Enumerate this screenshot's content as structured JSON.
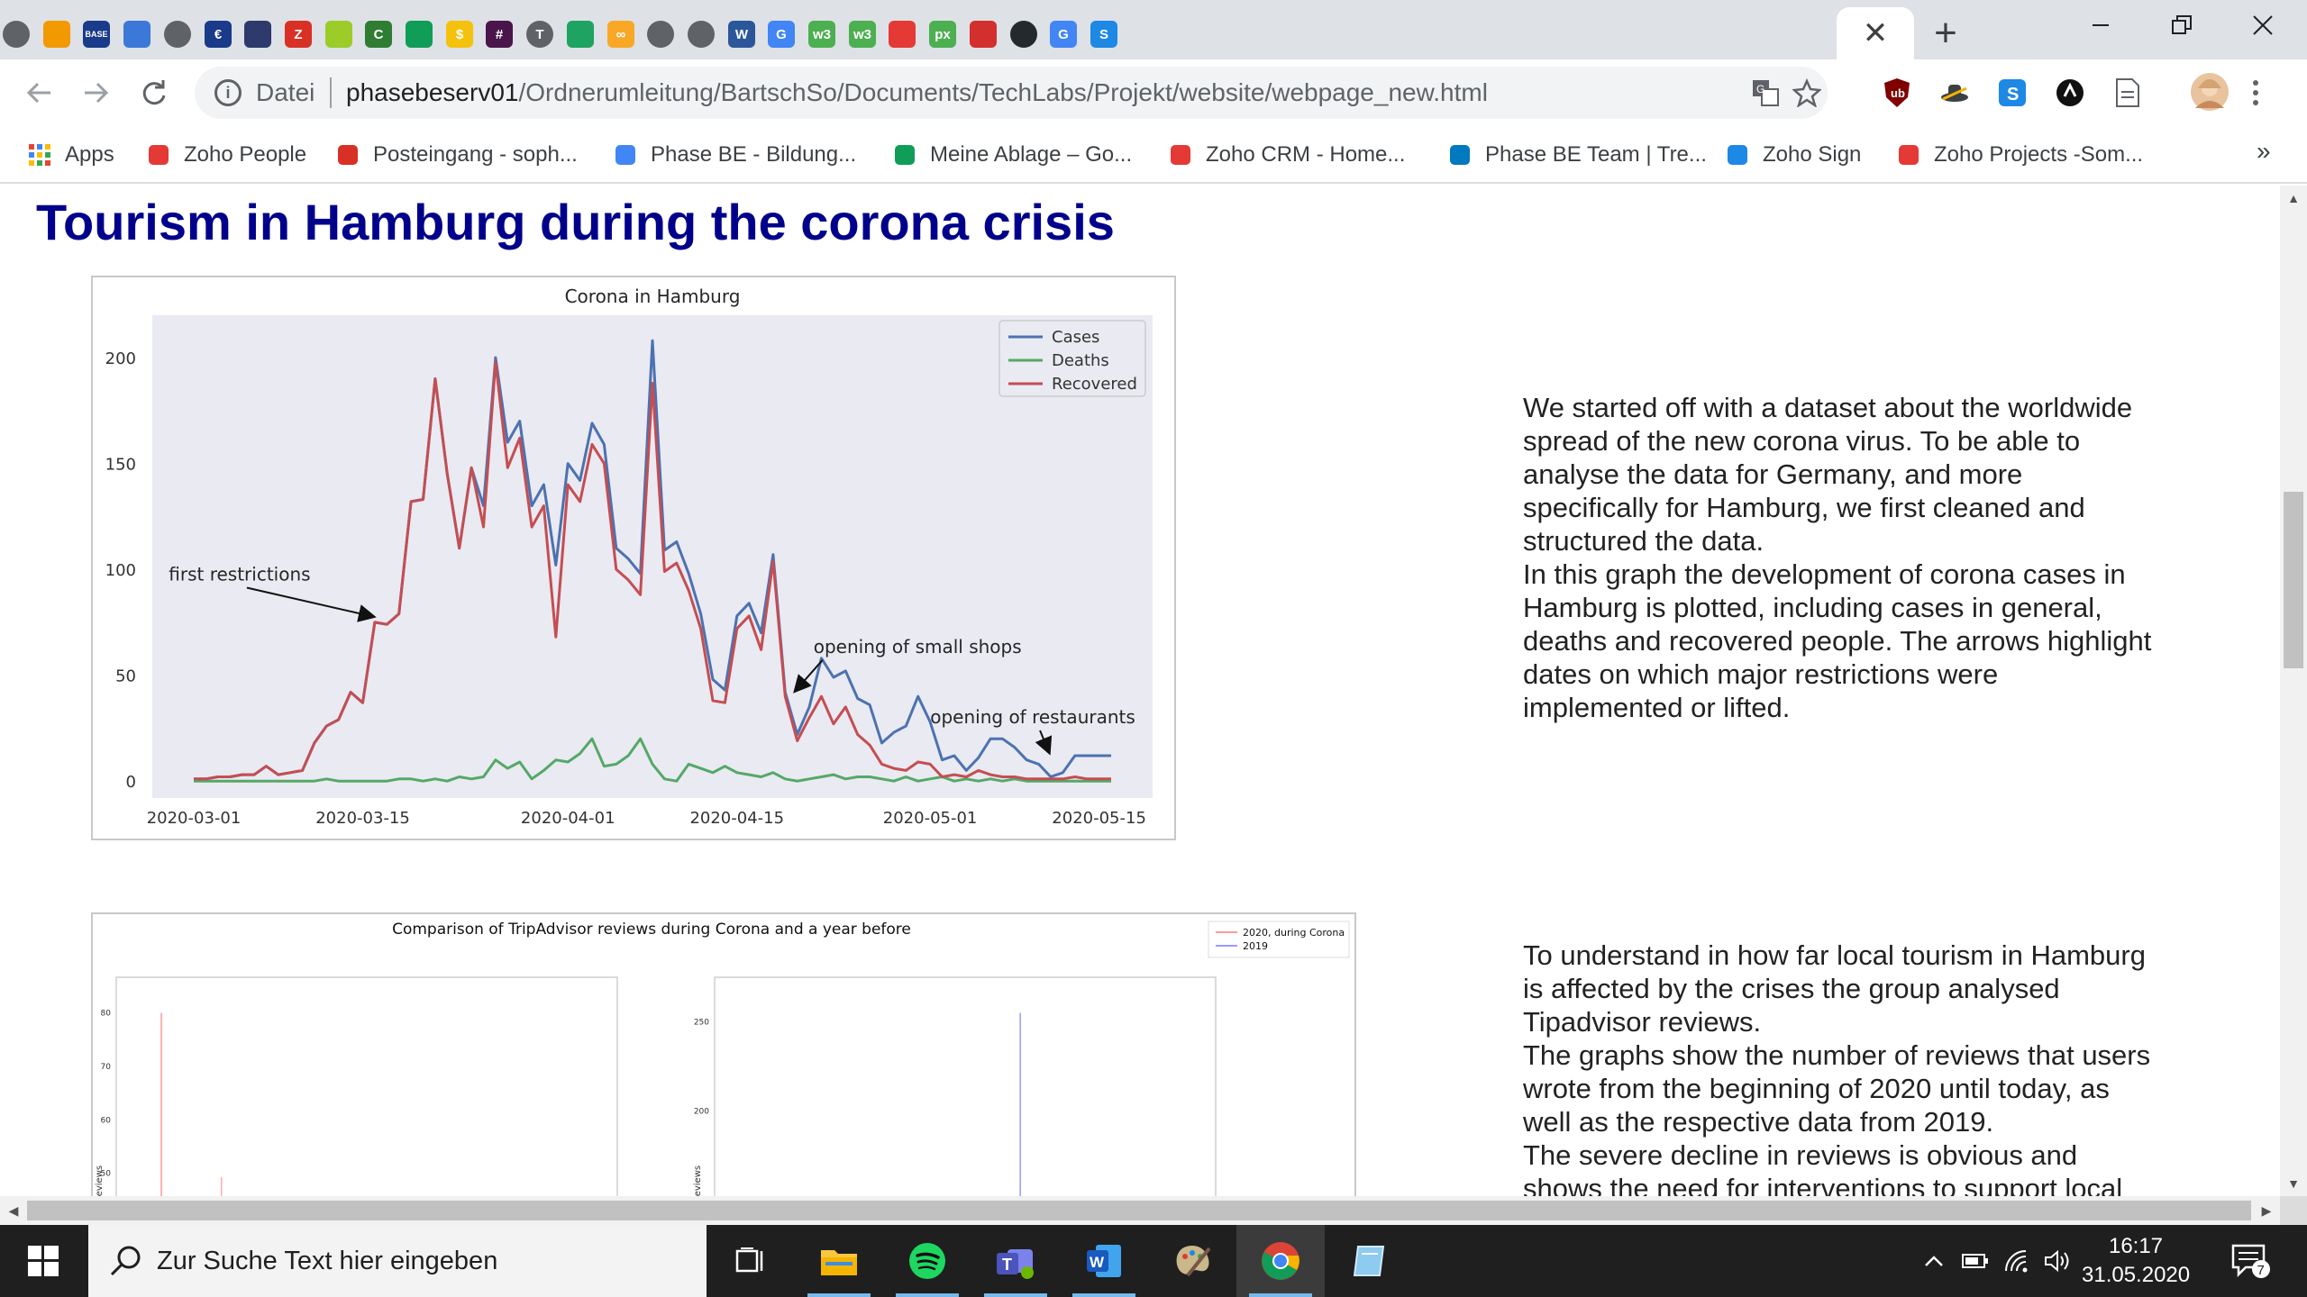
{
  "browser": {
    "close_tab_glyph": "✕",
    "new_tab_glyph": "+",
    "address_bar": {
      "security_label": "Datei",
      "host": "phasebeserv01",
      "path": "/Ordnerumleitung/BartschSo/Documents/TechLabs/Projekt/website/webpage_new.html"
    },
    "tab_favicons": [
      {
        "icon": "globe-icon",
        "label": "",
        "color": "#5f6368"
      },
      {
        "icon": "handshake-icon",
        "label": "",
        "color": "#f29900"
      },
      {
        "icon": "base-icon",
        "label": "BASE",
        "color": "#1a3a8a"
      },
      {
        "icon": "ship-icon",
        "label": "",
        "color": "#3c78d8"
      },
      {
        "icon": "globe-icon",
        "label": "",
        "color": "#5f6368"
      },
      {
        "icon": "euro-icon",
        "label": "€",
        "color": "#1a3a8a"
      },
      {
        "icon": "chart-icon",
        "label": "",
        "color": "#2d3a6b"
      },
      {
        "icon": "zotero-icon",
        "label": "Z",
        "color": "#d93025"
      },
      {
        "icon": "box-icon",
        "label": "",
        "color": "#9ccc28"
      },
      {
        "icon": "copilot-icon",
        "label": "C",
        "color": "#2e7d32"
      },
      {
        "icon": "egov-icon",
        "label": "",
        "color": "#0f9d58"
      },
      {
        "icon": "dollar-icon",
        "label": "$",
        "color": "#f4c20d"
      },
      {
        "icon": "slack-icon",
        "label": "#",
        "color": "#4a154b"
      },
      {
        "icon": "typo-icon",
        "label": "T",
        "color": "#5f6368"
      },
      {
        "icon": "drive-icon",
        "label": "",
        "color": "#1ea362"
      },
      {
        "icon": "infinity-icon",
        "label": "∞",
        "color": "#f9a825"
      },
      {
        "icon": "globe-icon",
        "label": "",
        "color": "#5f6368"
      },
      {
        "icon": "globe-icon",
        "label": "",
        "color": "#5f6368"
      },
      {
        "icon": "word-icon",
        "label": "W",
        "color": "#2b579a"
      },
      {
        "icon": "google-icon",
        "label": "G",
        "color": "#4285f4"
      },
      {
        "icon": "w3-icon",
        "label": "w3",
        "color": "#4caf50"
      },
      {
        "icon": "w3-icon",
        "label": "w3",
        "color": "#4caf50"
      },
      {
        "icon": "palette-icon",
        "label": "",
        "color": "#e53935"
      },
      {
        "icon": "pixlr-icon",
        "label": "px",
        "color": "#4caf50"
      },
      {
        "icon": "bullet-icon",
        "label": "",
        "color": "#d32f2f"
      },
      {
        "icon": "github-icon",
        "label": "",
        "color": "#24292e"
      },
      {
        "icon": "google-icon",
        "label": "G",
        "color": "#4285f4"
      },
      {
        "icon": "s-logo-icon",
        "label": "S",
        "color": "#1e88e5"
      }
    ],
    "bookmarks": [
      {
        "icon": "apps-grid-icon",
        "label": "Apps",
        "color": "#4285f4"
      },
      {
        "icon": "zoho-people-icon",
        "label": "Zoho People",
        "color": "#e53935"
      },
      {
        "icon": "gmail-icon",
        "label": "Posteingang - soph...",
        "color": "#d93025"
      },
      {
        "icon": "calendar-icon",
        "label": "Phase BE - Bildung...",
        "color": "#4285f4"
      },
      {
        "icon": "drive-icon",
        "label": "Meine Ablage – Go...",
        "color": "#0f9d58"
      },
      {
        "icon": "zoho-crm-icon",
        "label": "Zoho CRM - Home...",
        "color": "#e53935"
      },
      {
        "icon": "trello-icon",
        "label": "Phase BE Team | Tre...",
        "color": "#0079bf"
      },
      {
        "icon": "zoho-sign-icon",
        "label": "Zoho Sign",
        "color": "#1e88e5"
      },
      {
        "icon": "zoho-projects-icon",
        "label": "Zoho Projects -Som...",
        "color": "#e53935"
      }
    ],
    "bookmarks_more": "»"
  },
  "page": {
    "title": "Tourism in Hamburg during the corona crisis",
    "paragraph1": [
      "We started off with a dataset about the worldwide",
      "spread of the new corona virus. To be able to",
      "analyse the data for Germany, and more",
      "specifically for Hamburg, we first cleaned and",
      "structured the data.",
      "In this graph the development of corona cases in",
      "Hamburg is plotted, including cases in general,",
      "deaths and recovered people. The arrows highlight",
      "dates on which major restrictions were",
      "implemented or lifted."
    ],
    "paragraph2": [
      "To understand in how far local tourism in Hamburg",
      "is affected by the crises the group analysed",
      "Tipadvisor reviews.",
      "The graphs show the number of reviews that users",
      "wrote from the beginning of 2020 until today, as",
      "well as the respective data from 2019.",
      "The severe decline in reviews is obvious and",
      "shows the need for interventions to support local"
    ]
  },
  "chart_data": [
    {
      "type": "line",
      "title": "Corona in Hamburg",
      "xlabel": "",
      "ylabel": "",
      "x_start": "2020-03-01",
      "x": [
        "2020-03-01",
        "2020-03-02",
        "2020-03-03",
        "2020-03-04",
        "2020-03-05",
        "2020-03-06",
        "2020-03-07",
        "2020-03-08",
        "2020-03-09",
        "2020-03-10",
        "2020-03-11",
        "2020-03-12",
        "2020-03-13",
        "2020-03-14",
        "2020-03-15",
        "2020-03-16",
        "2020-03-17",
        "2020-03-18",
        "2020-03-19",
        "2020-03-20",
        "2020-03-21",
        "2020-03-22",
        "2020-03-23",
        "2020-03-24",
        "2020-03-25",
        "2020-03-26",
        "2020-03-27",
        "2020-03-28",
        "2020-03-29",
        "2020-03-30",
        "2020-03-31",
        "2020-04-01",
        "2020-04-02",
        "2020-04-03",
        "2020-04-04",
        "2020-04-05",
        "2020-04-06",
        "2020-04-07",
        "2020-04-08",
        "2020-04-09",
        "2020-04-10",
        "2020-04-11",
        "2020-04-12",
        "2020-04-13",
        "2020-04-14",
        "2020-04-15",
        "2020-04-16",
        "2020-04-17",
        "2020-04-18",
        "2020-04-19",
        "2020-04-20",
        "2020-04-21",
        "2020-04-22",
        "2020-04-23",
        "2020-04-24",
        "2020-04-25",
        "2020-04-26",
        "2020-04-27",
        "2020-04-28",
        "2020-04-29",
        "2020-04-30",
        "2020-05-01",
        "2020-05-02",
        "2020-05-03",
        "2020-05-04",
        "2020-05-05",
        "2020-05-06",
        "2020-05-07",
        "2020-05-08",
        "2020-05-09",
        "2020-05-10",
        "2020-05-11",
        "2020-05-12",
        "2020-05-13",
        "2020-05-14",
        "2020-05-15",
        "2020-05-16"
      ],
      "series": [
        {
          "name": "Cases",
          "color": "#4c72b0",
          "values": [
            1,
            1,
            2,
            2,
            3,
            3,
            7,
            3,
            4,
            5,
            18,
            26,
            29,
            42,
            37,
            75,
            74,
            79,
            132,
            133,
            190,
            145,
            110,
            148,
            130,
            200,
            160,
            170,
            130,
            140,
            102,
            150,
            142,
            169,
            159,
            110,
            105,
            98,
            208,
            109,
            113,
            98,
            79,
            48,
            43,
            78,
            84,
            70,
            107,
            42,
            22,
            35,
            58,
            49,
            52,
            39,
            36,
            18,
            23,
            26,
            40,
            28,
            10,
            12,
            5,
            11,
            20,
            20,
            16,
            10,
            8,
            2,
            4,
            12,
            12,
            12,
            12
          ]
        },
        {
          "name": "Deaths",
          "color": "#55a868",
          "values": [
            0,
            0,
            0,
            0,
            0,
            0,
            0,
            0,
            0,
            0,
            0,
            1,
            0,
            0,
            0,
            0,
            0,
            1,
            1,
            0,
            1,
            0,
            2,
            1,
            2,
            10,
            6,
            9,
            1,
            5,
            10,
            9,
            13,
            20,
            7,
            8,
            12,
            20,
            8,
            1,
            0,
            8,
            6,
            4,
            7,
            4,
            3,
            2,
            4,
            1,
            0,
            1,
            2,
            3,
            1,
            2,
            2,
            1,
            0,
            2,
            0,
            1,
            2,
            0,
            1,
            0,
            1,
            0,
            1,
            0,
            0,
            0,
            0,
            0,
            0,
            0,
            0
          ]
        },
        {
          "name": "Recovered",
          "color": "#c44e52",
          "values": [
            1,
            1,
            2,
            2,
            3,
            3,
            7,
            3,
            4,
            5,
            18,
            26,
            29,
            42,
            37,
            75,
            74,
            79,
            132,
            133,
            190,
            145,
            110,
            148,
            120,
            198,
            148,
            162,
            120,
            130,
            68,
            140,
            132,
            159,
            150,
            100,
            95,
            88,
            188,
            99,
            103,
            90,
            72,
            38,
            37,
            72,
            78,
            62,
            104,
            40,
            19,
            30,
            40,
            27,
            35,
            22,
            17,
            8,
            6,
            5,
            9,
            8,
            2,
            3,
            2,
            5,
            3,
            2,
            2,
            1,
            1,
            1,
            1,
            2,
            1,
            1,
            1
          ]
        }
      ],
      "ylim": [
        -8,
        220
      ],
      "yticks": [
        0,
        50,
        100,
        150,
        200
      ],
      "xticks": [
        {
          "date": "2020-03-01",
          "label": "2020-03-01"
        },
        {
          "date": "2020-03-15",
          "label": "2020-03-15"
        },
        {
          "date": "2020-04-01",
          "label": "2020-04-01"
        },
        {
          "date": "2020-04-15",
          "label": "2020-04-15"
        },
        {
          "date": "2020-05-01",
          "label": "2020-05-01"
        },
        {
          "date": "2020-05-15",
          "label": "2020-05-15"
        }
      ],
      "legend_position": "top-right",
      "background": "#eaeaf2",
      "grid": false,
      "annotations": [
        {
          "text": "first restrictions",
          "date": "2020-03-16",
          "value": 76,
          "text_position": "left"
        },
        {
          "text": "opening of small shops",
          "date": "2020-04-20",
          "value": 41,
          "text_position": "upper-right"
        },
        {
          "text": "opening of restaurants",
          "date": "2020-05-11",
          "value": 12,
          "text_position": "above"
        }
      ]
    },
    {
      "type": "line",
      "title": "Comparison of TripAdvisor reviews during Corona and a year before",
      "legend": [
        {
          "name": "2020, during Corona",
          "color": "#ff9999"
        },
        {
          "name": "2019",
          "color": "#9999ff"
        }
      ],
      "legend_position": "top-right",
      "panels": [
        {
          "yticks": [
            50,
            60,
            70,
            80
          ],
          "ylabel": "of reviews",
          "series": "2020, during Corona",
          "peak": 80
        },
        {
          "yticks": [
            150,
            200,
            250
          ],
          "ylabel": "of reviews",
          "series": "2019",
          "peak": 255
        }
      ]
    }
  ],
  "taskbar": {
    "search_placeholder": "Zur Suche Text hier eingeben",
    "time": "16:17",
    "date": "31.05.2020",
    "notification_count": "7"
  }
}
